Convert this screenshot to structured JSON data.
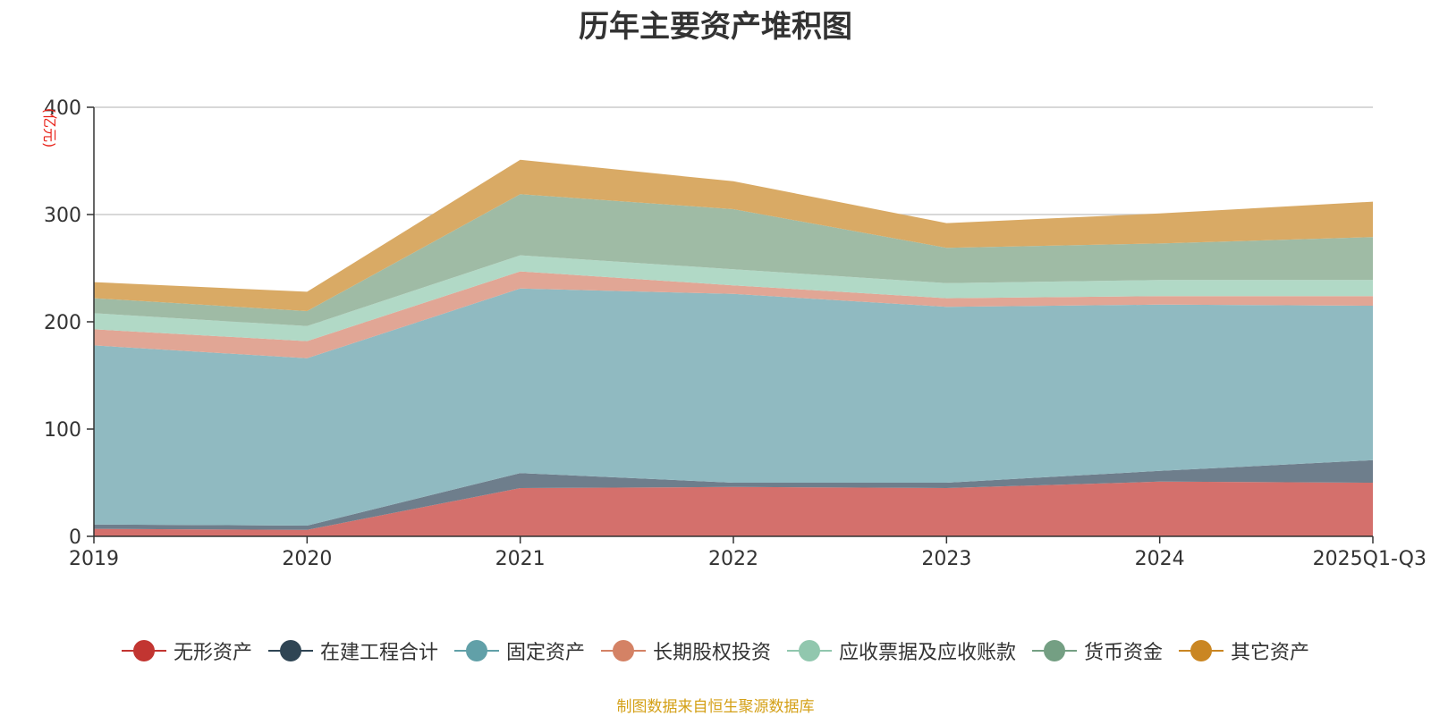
{
  "chart_data": {
    "type": "area",
    "stacked": true,
    "title": "历年主要资产堆积图",
    "ylabel": "(亿元)",
    "ylim": [
      0,
      400
    ],
    "yticks": [
      0,
      100,
      200,
      300,
      400
    ],
    "categories": [
      "2019",
      "2020",
      "2021",
      "2022",
      "2023",
      "2024",
      "2025Q1-Q3"
    ],
    "series": [
      {
        "name": "无形资产",
        "color": "#c23531",
        "fill": "#d4706c",
        "values": [
          7,
          6,
          45,
          46,
          45,
          51,
          50
        ]
      },
      {
        "name": "在建工程合计",
        "color": "#2f4554",
        "fill": "#6e7e8c",
        "values": [
          4,
          4,
          14,
          4,
          5,
          10,
          21
        ]
      },
      {
        "name": "固定资产",
        "color": "#61a0a8",
        "fill": "#90bac1",
        "values": [
          167,
          156,
          172,
          176,
          164,
          155,
          144
        ]
      },
      {
        "name": "长期股权投资",
        "color": "#d48265",
        "fill": "#e1a695",
        "values": [
          15,
          16,
          16,
          8,
          8,
          8,
          9
        ]
      },
      {
        "name": "应收票据及应收账款",
        "color": "#91c7ae",
        "fill": "#b1d9c6",
        "values": [
          15,
          14,
          15,
          15,
          14,
          15,
          15
        ]
      },
      {
        "name": "货币资金",
        "color": "#749f83",
        "fill": "#9fbba5",
        "values": [
          14,
          14,
          57,
          56,
          33,
          34,
          40
        ]
      },
      {
        "name": "其它资产",
        "color": "#ca8622",
        "fill": "#d9aa65",
        "values": [
          15,
          18,
          32,
          26,
          23,
          28,
          33
        ]
      }
    ],
    "source_note": "制图数据来自恒生聚源数据库"
  }
}
